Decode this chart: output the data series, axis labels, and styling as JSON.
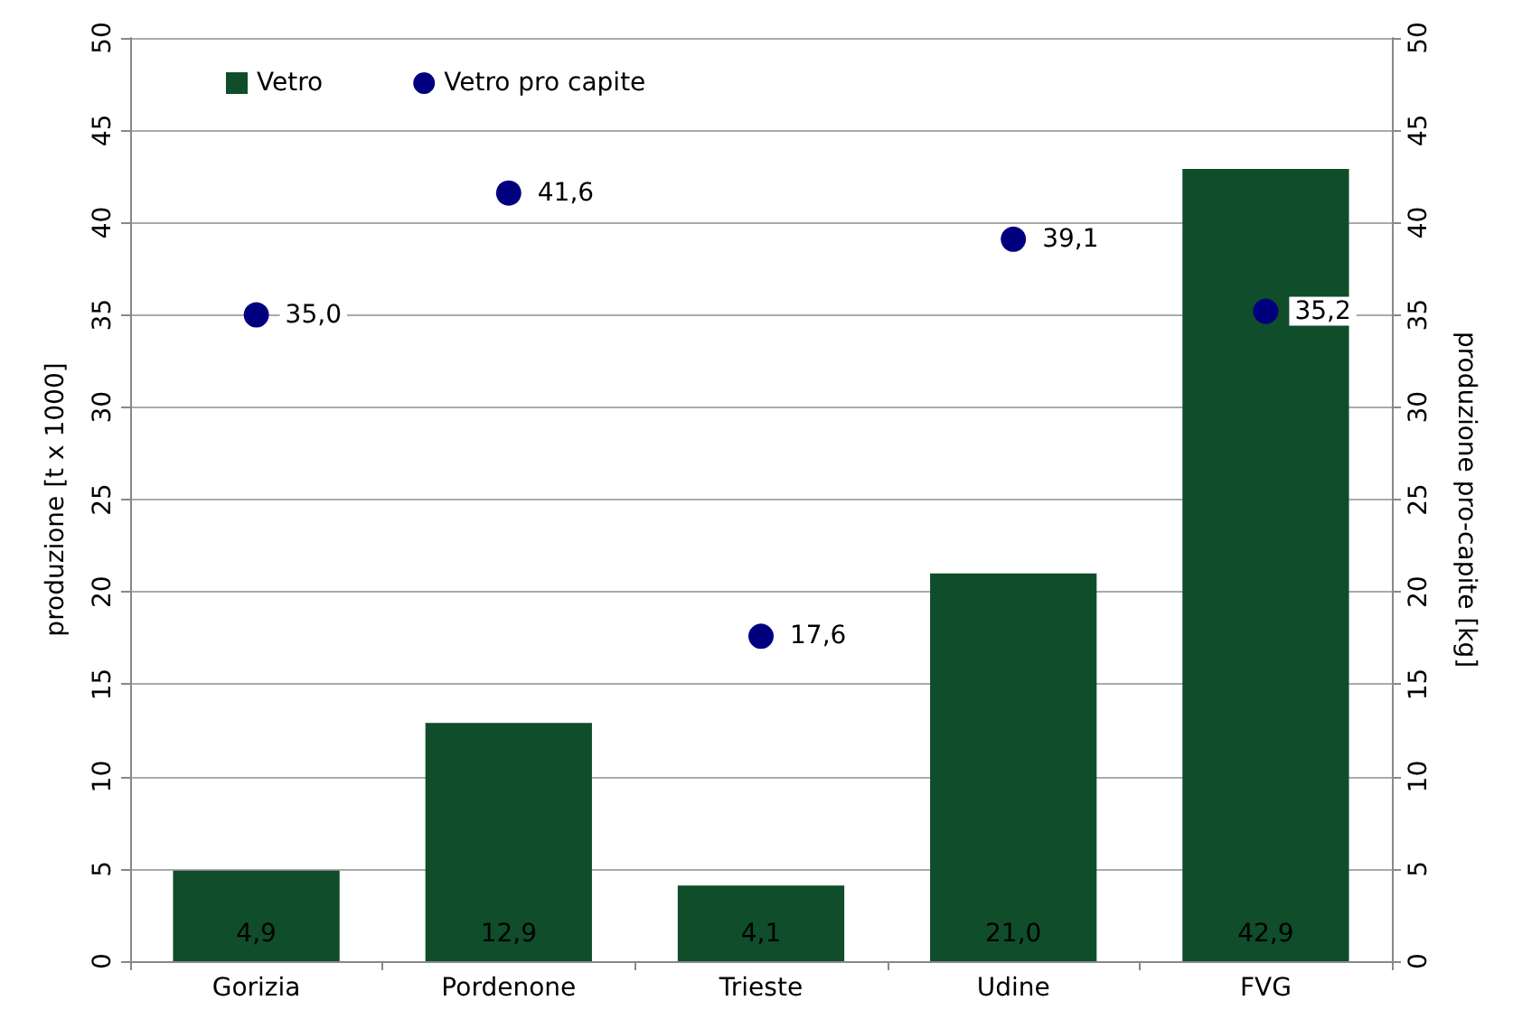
{
  "chart_data": {
    "type": "bar",
    "categories": [
      "Gorizia",
      "Pordenone",
      "Trieste",
      "Udine",
      "FVG"
    ],
    "ylabel": "produzione [t x 1000]",
    "y2label": "produzione pro-capite [kg]",
    "series": [
      {
        "name": "Vetro",
        "type": "bar",
        "color": "#0f4d2b",
        "values": [
          4.9,
          12.9,
          4.1,
          21.0,
          42.9
        ],
        "value_labels": [
          "4,9",
          "12,9",
          "4,1",
          "21,0",
          "42,9"
        ]
      },
      {
        "name": "Vetro pro capite",
        "type": "scatter",
        "axis": "y2",
        "color": "#00007f",
        "marker": "circle",
        "values": [
          35.0,
          41.6,
          17.6,
          39.1,
          35.2
        ],
        "value_labels": [
          "35,0",
          "41,6",
          "17,6",
          "39,1",
          "35,2"
        ]
      }
    ],
    "ylim": [
      0,
      50
    ],
    "yticks": [
      0,
      5,
      10,
      15,
      20,
      25,
      30,
      35,
      40,
      45,
      50
    ],
    "y2lim": [
      0,
      50
    ],
    "y2ticks": [
      0,
      5,
      10,
      15,
      20,
      25,
      30,
      35,
      40,
      45,
      50
    ],
    "grid": "y",
    "legend": "top left"
  }
}
